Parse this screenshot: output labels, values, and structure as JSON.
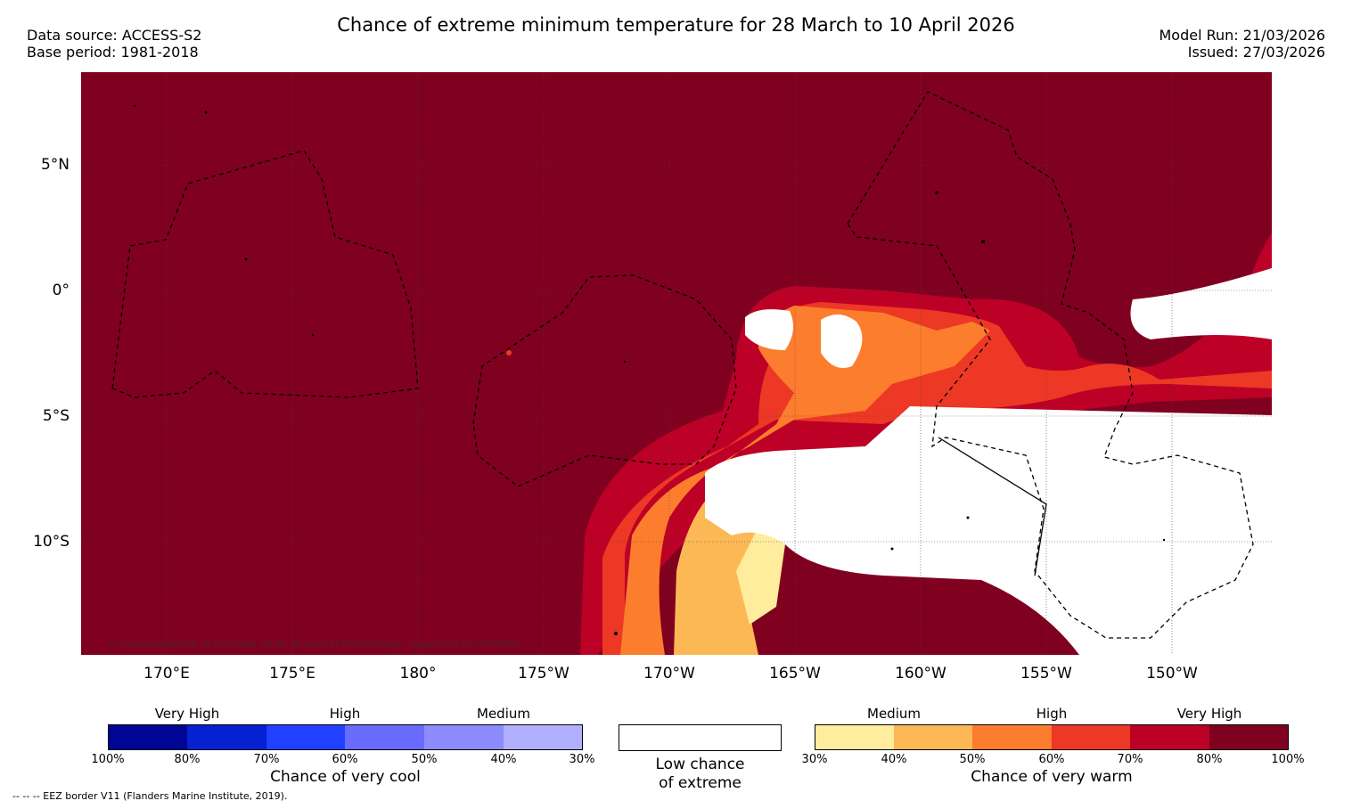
{
  "title": "Chance of extreme minimum temperature for 28 March to 10 April 2026",
  "meta_left": {
    "line1": "Data source: ACCESS-S2",
    "line2": "Base period: 1981-2018"
  },
  "meta_right": {
    "line1": "Model Run: 21/03/2026",
    "line2": "Issued: 27/03/2026"
  },
  "map": {
    "background_color": "#800020",
    "lat_labels": [
      "5°N",
      "0°",
      "5°S",
      "10°S"
    ],
    "lon_labels": [
      "170°E",
      "175°E",
      "180°",
      "175°W",
      "170°W",
      "165°W",
      "160°W",
      "155°W",
      "150°W"
    ],
    "copyright": "© Commonwealth of Australia 2026, Bureau of Meteorology, supported by COSPPac"
  },
  "legend_cool": {
    "title": "Chance of very cool",
    "levels": [
      "Very High",
      "High",
      "Medium"
    ],
    "ticks": [
      "100%",
      "80%",
      "70%",
      "60%",
      "50%",
      "40%",
      "30%"
    ],
    "colors": [
      "#000596",
      "#0521d1",
      "#2140ff",
      "#6a6aff",
      "#8c8cff",
      "#b0b0ff"
    ]
  },
  "legend_low": {
    "line1": "Low chance",
    "line2": "of extreme"
  },
  "legend_warm": {
    "title": "Chance of very warm",
    "levels": [
      "Medium",
      "High",
      "Very High"
    ],
    "ticks": [
      "30%",
      "40%",
      "50%",
      "60%",
      "70%",
      "80%",
      "100%"
    ],
    "colors": [
      "#ffec9c",
      "#fdb856",
      "#fc7d2d",
      "#ec3824",
      "#bd0026",
      "#800020"
    ]
  },
  "footer": "-- -- -- EEZ border V11 (Flanders Marine Institute, 2019)."
}
